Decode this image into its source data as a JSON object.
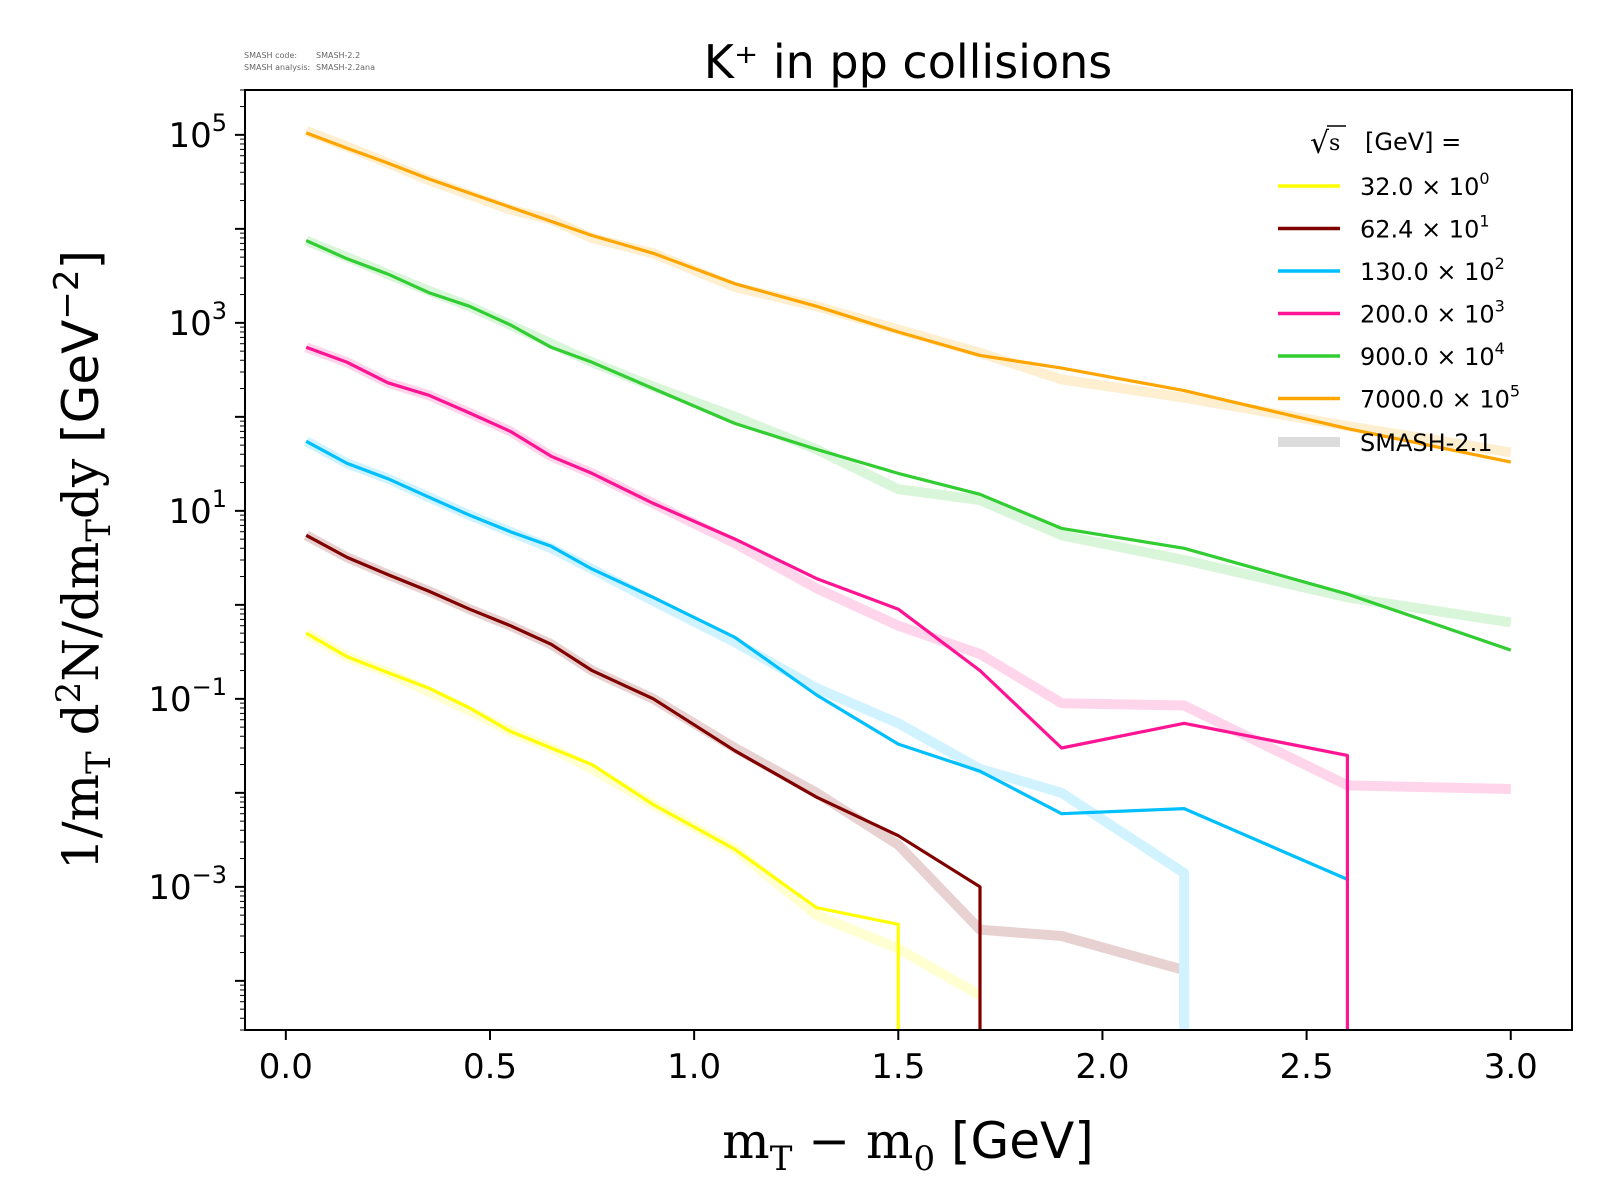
{
  "meta": {
    "code_label": "SMASH code:",
    "code_value": "SMASH-2.2",
    "analysis_label": "SMASH analysis:",
    "analysis_value": "SMASH-2.2ana"
  },
  "chart_data": {
    "type": "line",
    "title": "K⁺ in pp collisions",
    "xlabel": "m_T - m_0 [GeV]",
    "ylabel": "1/m_T d²N/dm_T dy [GeV⁻²]",
    "xlim": [
      -0.1,
      3.15
    ],
    "ylim": [
      3e-05,
      300000
    ],
    "yscale": "log",
    "x_ticks": [
      "0.0",
      "0.5",
      "1.0",
      "1.5",
      "2.0",
      "2.5",
      "3.0"
    ],
    "y_ticks": [
      {
        "value": 100000,
        "base": "10",
        "exp": "5"
      },
      {
        "value": 1000,
        "base": "10",
        "exp": "3"
      },
      {
        "value": 10,
        "base": "10",
        "exp": "1"
      },
      {
        "value": 0.1,
        "base": "10",
        "exp": "−1"
      },
      {
        "value": 0.001,
        "base": "10",
        "exp": "−3"
      }
    ],
    "legend": {
      "title_sqrt": "s",
      "title_text": "[GeV] =",
      "placement": "top-right",
      "reference_label": "SMASH-2.1"
    },
    "x": [
      0.05,
      0.15,
      0.25,
      0.35,
      0.45,
      0.55,
      0.65,
      0.75,
      0.9,
      1.1,
      1.3,
      1.5,
      1.7,
      1.9,
      2.2,
      2.6,
      3.0
    ],
    "series": [
      {
        "name": "32.0",
        "factor_base": "10",
        "factor_exp": "0",
        "color": "#ffff00",
        "values": [
          0.5,
          0.28,
          0.19,
          0.13,
          0.08,
          0.045,
          0.03,
          0.02,
          0.0075,
          0.0025,
          0.0006,
          0.0004,
          null,
          null,
          null,
          null,
          null
        ],
        "drop_x": 1.5,
        "reference": [
          0.5,
          0.28,
          0.19,
          0.12,
          0.075,
          0.045,
          0.03,
          0.018,
          0.0075,
          0.0025,
          0.0005,
          0.00022,
          7e-05,
          null,
          null,
          null,
          null
        ]
      },
      {
        "name": "62.4",
        "factor_base": "10",
        "factor_exp": "1",
        "color": "#800000",
        "values": [
          5.5,
          3.2,
          2.1,
          1.4,
          0.9,
          0.6,
          0.38,
          0.2,
          0.1,
          0.028,
          0.009,
          0.0035,
          0.001,
          null,
          null,
          null,
          null
        ],
        "drop_x": 1.7,
        "reference": [
          5.5,
          3.2,
          2.1,
          1.4,
          0.9,
          0.6,
          0.38,
          0.2,
          0.1,
          0.03,
          0.01,
          0.0028,
          0.00035,
          0.0003,
          0.00013,
          null,
          null
        ],
        "reference_drop_x": 2.2
      },
      {
        "name": "130.0",
        "factor_base": "10",
        "factor_exp": "2",
        "color": "#00bfff",
        "values": [
          55,
          32,
          22,
          14,
          9,
          6,
          4.2,
          2.4,
          1.2,
          0.45,
          0.11,
          0.033,
          0.017,
          0.006,
          0.0068,
          0.0012,
          null
        ],
        "reference": [
          55,
          32,
          22,
          14,
          9,
          6,
          4.0,
          2.4,
          1.1,
          0.4,
          0.13,
          0.055,
          0.018,
          0.01,
          0.0014,
          null,
          null
        ],
        "reference_drop_x": 2.2
      },
      {
        "name": "200.0",
        "factor_base": "10",
        "factor_exp": "3",
        "color": "#ff1493",
        "values": [
          550,
          380,
          230,
          170,
          110,
          70,
          38,
          25,
          12,
          5,
          1.9,
          0.9,
          0.2,
          0.03,
          0.055,
          0.025,
          null
        ],
        "drop_x": 2.6,
        "reference": [
          550,
          380,
          230,
          170,
          110,
          70,
          38,
          25,
          12,
          4.5,
          1.5,
          0.6,
          0.3,
          0.09,
          0.085,
          0.012,
          0.011
        ]
      },
      {
        "name": "900.0",
        "factor_base": "10",
        "factor_exp": "4",
        "color": "#32cd32",
        "values": [
          7500,
          4800,
          3300,
          2100,
          1500,
          950,
          550,
          380,
          200,
          85,
          45,
          25,
          15,
          6.5,
          4,
          1.3,
          0.33
        ],
        "reference": [
          7500,
          5000,
          3300,
          2200,
          1500,
          950,
          600,
          380,
          210,
          100,
          45,
          17,
          13,
          5.5,
          3,
          1.2,
          0.65
        ]
      },
      {
        "name": "7000.0",
        "factor_base": "10",
        "factor_exp": "5",
        "color": "#ffa500",
        "values": [
          105000,
          72000,
          50000,
          34000,
          24000,
          17000,
          12000,
          8500,
          5500,
          2600,
          1500,
          800,
          450,
          330,
          190,
          75,
          33
        ],
        "reference": [
          110000,
          75000,
          50000,
          33000,
          23000,
          16000,
          12500,
          8000,
          5500,
          2400,
          1500,
          850,
          480,
          250,
          160,
          80,
          42
        ]
      }
    ]
  }
}
